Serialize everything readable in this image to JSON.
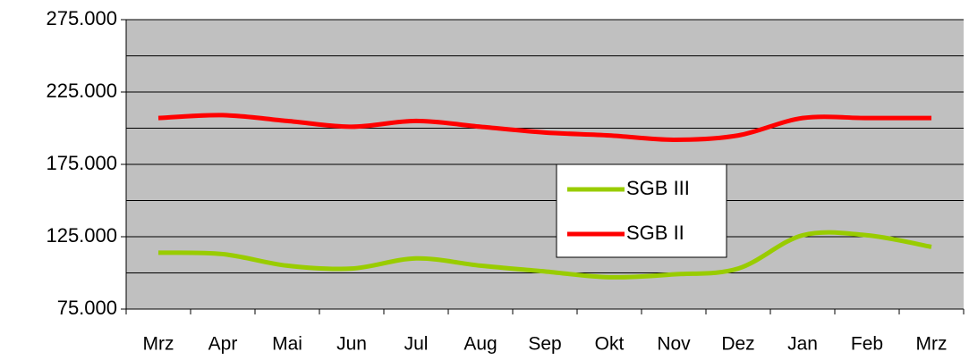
{
  "chart_data": {
    "type": "line",
    "categories": [
      "Mrz",
      "Apr",
      "Mai",
      "Jun",
      "Jul",
      "Aug",
      "Sep",
      "Okt",
      "Nov",
      "Dez",
      "Jan",
      "Feb",
      "Mrz"
    ],
    "series": [
      {
        "name": "SGB III",
        "color": "#99cc00",
        "values": [
          114000,
          113000,
          105000,
          103000,
          110000,
          105000,
          101000,
          97000,
          99000,
          103000,
          126000,
          126000,
          118000
        ]
      },
      {
        "name": "SGB II",
        "color": "#ff0000",
        "values": [
          207000,
          209000,
          205000,
          201000,
          205000,
          201000,
          197000,
          195000,
          192000,
          195000,
          207000,
          207000,
          207000
        ]
      }
    ],
    "ylim": [
      75000,
      275000
    ],
    "yticks": [
      {
        "value": 75000,
        "label": "75.000"
      },
      {
        "value": 125000,
        "label": "125.000"
      },
      {
        "value": 175000,
        "label": "175.000"
      },
      {
        "value": 225000,
        "label": "225.000"
      },
      {
        "value": 275000,
        "label": "275.000"
      }
    ],
    "minor_yticks": [
      100000,
      150000,
      200000,
      250000
    ],
    "grid": true,
    "plot_background": "#c0c0c0",
    "legend_position": "center-right"
  }
}
